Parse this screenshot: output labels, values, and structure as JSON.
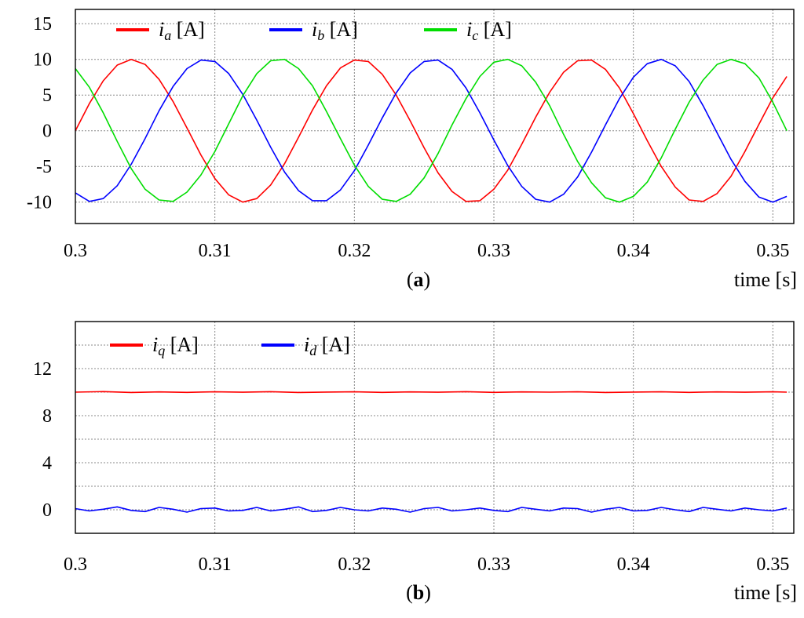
{
  "chart_data": [
    {
      "type": "line",
      "panel_caption": "a",
      "xlabel": "time [s]",
      "ylabel": "",
      "xlim": [
        0.3,
        0.3515
      ],
      "ylim": [
        -13,
        17
      ],
      "xticks": [
        0.3,
        0.31,
        0.32,
        0.33,
        0.34,
        0.35
      ],
      "xtick_labels": [
        "0.3",
        "0.31",
        "0.32",
        "0.33",
        "0.34",
        "0.35"
      ],
      "yticks": [
        -10,
        -5,
        0,
        5,
        10,
        15
      ],
      "ytick_labels": [
        "-10",
        "-5",
        "0",
        "5",
        "10",
        "15"
      ],
      "grid": true,
      "legend_position": "top",
      "series": [
        {
          "name": "i_a [A]",
          "name_main": "i",
          "name_sub": "a",
          "name_unit": " [A]",
          "color": "#ff0000",
          "x": [
            0.3,
            0.301,
            0.302,
            0.303,
            0.304,
            0.305,
            0.306,
            0.307,
            0.308,
            0.309,
            0.31,
            0.311,
            0.312,
            0.313,
            0.314,
            0.315,
            0.316,
            0.317,
            0.318,
            0.319,
            0.32,
            0.321,
            0.322,
            0.323,
            0.324,
            0.325,
            0.326,
            0.327,
            0.328,
            0.329,
            0.33,
            0.331,
            0.332,
            0.333,
            0.334,
            0.335,
            0.336,
            0.337,
            0.338,
            0.339,
            0.34,
            0.341,
            0.342,
            0.343,
            0.344,
            0.345,
            0.346,
            0.347,
            0.348,
            0.349,
            0.35,
            0.351
          ],
          "y": [
            0.0,
            3.8,
            7.0,
            9.2,
            10.0,
            9.3,
            7.2,
            4.1,
            0.4,
            -3.4,
            -6.7,
            -9.0,
            -10.0,
            -9.5,
            -7.6,
            -4.6,
            -0.9,
            2.9,
            6.3,
            8.8,
            9.9,
            9.7,
            7.9,
            5.0,
            1.4,
            -2.4,
            -5.9,
            -8.5,
            -9.9,
            -9.8,
            -8.2,
            -5.5,
            -1.9,
            1.9,
            5.4,
            8.2,
            9.8,
            9.9,
            8.6,
            6.0,
            2.4,
            -1.4,
            -5.0,
            -7.9,
            -9.7,
            -9.9,
            -8.8,
            -6.4,
            -2.9,
            0.9,
            4.6,
            7.6
          ]
        },
        {
          "name": "i_b [A]",
          "name_main": "i",
          "name_sub": "b",
          "name_unit": " [A]",
          "color": "#0000ff",
          "x": [
            0.3,
            0.301,
            0.302,
            0.303,
            0.304,
            0.305,
            0.306,
            0.307,
            0.308,
            0.309,
            0.31,
            0.311,
            0.312,
            0.313,
            0.314,
            0.315,
            0.316,
            0.317,
            0.318,
            0.319,
            0.32,
            0.321,
            0.322,
            0.323,
            0.324,
            0.325,
            0.326,
            0.327,
            0.328,
            0.329,
            0.33,
            0.331,
            0.332,
            0.333,
            0.334,
            0.335,
            0.336,
            0.337,
            0.338,
            0.339,
            0.34,
            0.341,
            0.342,
            0.343,
            0.344,
            0.345,
            0.346,
            0.347,
            0.348,
            0.349,
            0.35,
            0.351
          ],
          "y": [
            -8.7,
            -9.9,
            -9.5,
            -7.7,
            -4.7,
            -1.1,
            2.8,
            6.2,
            8.7,
            9.9,
            9.7,
            8.0,
            5.1,
            1.5,
            -2.3,
            -5.8,
            -8.4,
            -9.8,
            -9.8,
            -8.3,
            -5.6,
            -2.0,
            1.8,
            5.3,
            8.1,
            9.7,
            9.9,
            8.6,
            6.0,
            2.5,
            -1.3,
            -4.9,
            -7.8,
            -9.6,
            -10.0,
            -8.9,
            -6.5,
            -3.0,
            0.8,
            4.5,
            7.5,
            9.4,
            10.0,
            9.1,
            6.9,
            3.5,
            -0.3,
            -4.0,
            -7.1,
            -9.3,
            -10.0,
            -9.2
          ]
        },
        {
          "name": "i_c [A]",
          "name_main": "i",
          "name_sub": "c",
          "name_unit": " [A]",
          "color": "#00dd00",
          "x": [
            0.3,
            0.301,
            0.302,
            0.303,
            0.304,
            0.305,
            0.306,
            0.307,
            0.308,
            0.309,
            0.31,
            0.311,
            0.312,
            0.313,
            0.314,
            0.315,
            0.316,
            0.317,
            0.318,
            0.319,
            0.32,
            0.321,
            0.322,
            0.323,
            0.324,
            0.325,
            0.326,
            0.327,
            0.328,
            0.329,
            0.33,
            0.331,
            0.332,
            0.333,
            0.334,
            0.335,
            0.336,
            0.337,
            0.338,
            0.339,
            0.34,
            0.341,
            0.342,
            0.343,
            0.344,
            0.345,
            0.346,
            0.347,
            0.348,
            0.349,
            0.35,
            0.351
          ],
          "y": [
            8.7,
            6.1,
            2.5,
            -1.5,
            -5.3,
            -8.2,
            -9.7,
            -9.9,
            -8.6,
            -6.2,
            -2.9,
            1.0,
            4.9,
            8.0,
            9.8,
            10.0,
            8.7,
            6.3,
            2.7,
            -1.1,
            -4.8,
            -7.8,
            -9.6,
            -9.9,
            -8.9,
            -6.6,
            -3.2,
            0.8,
            4.5,
            7.6,
            9.6,
            10.0,
            9.1,
            6.8,
            3.5,
            -0.5,
            -4.3,
            -7.3,
            -9.4,
            -10.0,
            -9.2,
            -7.2,
            -3.8,
            0.2,
            4.0,
            7.1,
            9.3,
            10.0,
            9.4,
            7.4,
            4.0,
            0.0
          ]
        }
      ]
    },
    {
      "type": "line",
      "panel_caption": "b",
      "xlabel": "time [s]",
      "ylabel": "",
      "xlim": [
        0.3,
        0.3515
      ],
      "ylim": [
        -2,
        16
      ],
      "xticks": [
        0.3,
        0.31,
        0.32,
        0.33,
        0.34,
        0.35
      ],
      "xtick_labels": [
        "0.3",
        "0.31",
        "0.32",
        "0.33",
        "0.34",
        "0.35"
      ],
      "yticks": [
        0,
        4,
        8,
        12
      ],
      "ytick_labels": [
        "0",
        "4",
        "8",
        "12"
      ],
      "grid": true,
      "legend_position": "top",
      "series": [
        {
          "name": "i_q [A]",
          "name_main": "i",
          "name_sub": "q",
          "name_unit": " [A]",
          "color": "#ff0000",
          "x": [
            0.3,
            0.302,
            0.304,
            0.306,
            0.308,
            0.31,
            0.312,
            0.314,
            0.316,
            0.318,
            0.32,
            0.322,
            0.324,
            0.326,
            0.328,
            0.33,
            0.332,
            0.334,
            0.336,
            0.338,
            0.34,
            0.342,
            0.344,
            0.346,
            0.348,
            0.35,
            0.351
          ],
          "y": [
            10.0,
            10.05,
            9.97,
            10.02,
            9.98,
            10.03,
            9.99,
            10.04,
            9.97,
            10.01,
            10.03,
            9.98,
            10.02,
            9.99,
            10.04,
            9.98,
            10.02,
            10.0,
            10.03,
            9.97,
            10.01,
            10.03,
            9.98,
            10.02,
            9.99,
            10.03,
            10.0
          ]
        },
        {
          "name": "i_d [A]",
          "name_main": "i",
          "name_sub": "d",
          "name_unit": " [A]",
          "color": "#0000ff",
          "x": [
            0.3,
            0.301,
            0.302,
            0.303,
            0.304,
            0.305,
            0.306,
            0.307,
            0.308,
            0.309,
            0.31,
            0.311,
            0.312,
            0.313,
            0.314,
            0.315,
            0.316,
            0.317,
            0.318,
            0.319,
            0.32,
            0.321,
            0.322,
            0.323,
            0.324,
            0.325,
            0.326,
            0.327,
            0.328,
            0.329,
            0.33,
            0.331,
            0.332,
            0.333,
            0.334,
            0.335,
            0.336,
            0.337,
            0.338,
            0.339,
            0.34,
            0.341,
            0.342,
            0.343,
            0.344,
            0.345,
            0.346,
            0.347,
            0.348,
            0.349,
            0.35,
            0.351
          ],
          "y": [
            0.1,
            -0.1,
            0.05,
            0.25,
            -0.05,
            -0.15,
            0.2,
            0.05,
            -0.2,
            0.1,
            0.15,
            -0.1,
            -0.05,
            0.2,
            -0.1,
            0.05,
            0.25,
            -0.15,
            -0.05,
            0.2,
            0.0,
            -0.1,
            0.15,
            0.05,
            -0.2,
            0.1,
            0.2,
            -0.1,
            0.0,
            0.15,
            -0.05,
            -0.15,
            0.2,
            0.05,
            -0.1,
            0.15,
            0.1,
            -0.2,
            0.05,
            0.2,
            -0.1,
            -0.05,
            0.2,
            0.0,
            -0.15,
            0.2,
            0.05,
            -0.1,
            0.15,
            0.0,
            -0.1,
            0.15
          ]
        }
      ]
    }
  ]
}
